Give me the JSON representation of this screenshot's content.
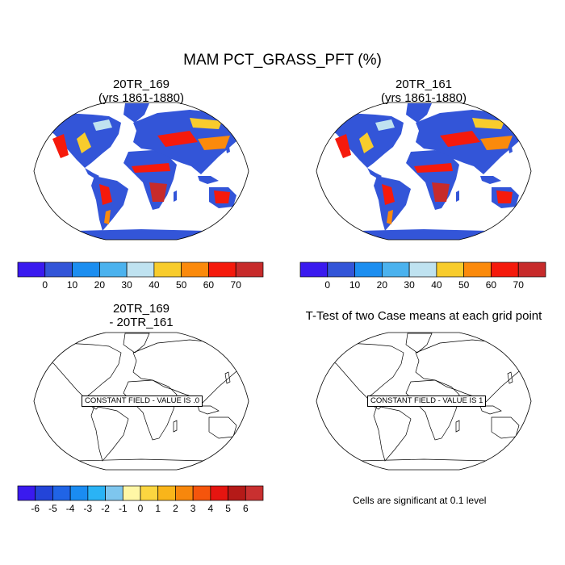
{
  "title": "MAM PCT_GRASS_PFT (%)",
  "panels": {
    "top_left": {
      "title_line1": "20TR_169",
      "title_line2": "(yrs 1861-1880)"
    },
    "top_right": {
      "title_line1": "20TR_161",
      "title_line2": "(yrs 1861-1880)"
    },
    "bottom_left": {
      "title_line1": "20TR_169",
      "title_line2": "- 20TR_161",
      "constant_field_text": "CONSTANT FIELD - VALUE IS .0"
    },
    "bottom_right": {
      "title_line1": "T-Test of two Case means at each grid point",
      "constant_field_text": "CONSTANT FIELD - VALUE IS 1"
    }
  },
  "colorbar_main": {
    "colors": [
      "#3a1aef",
      "#3355d8",
      "#1c8ef0",
      "#4bb2ee",
      "#bfe2f0",
      "#f8cc2c",
      "#fb8a0c",
      "#f51a0c",
      "#c72b2b"
    ],
    "labels": [
      "0",
      "10",
      "20",
      "30",
      "40",
      "50",
      "60",
      "70"
    ]
  },
  "colorbar_diff": {
    "colors": [
      "#3a1aef",
      "#2344d8",
      "#2064e6",
      "#1a8cf2",
      "#2ab3f5",
      "#7ec6ee",
      "#fff7a6",
      "#fbd640",
      "#f9b51a",
      "#f7870c",
      "#f5550c",
      "#e51510",
      "#b51a18",
      "#c93030"
    ],
    "labels": [
      "-6",
      "-5",
      "-4",
      "-3",
      "-2",
      "-1",
      "0",
      "1",
      "2",
      "3",
      "4",
      "5",
      "6"
    ]
  },
  "significance_text": "Cells are significant at 0.1 level"
}
